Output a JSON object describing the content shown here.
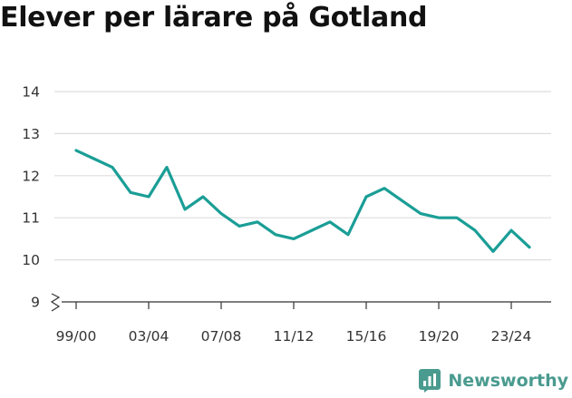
{
  "chart_data": {
    "type": "line",
    "title": "Elever per lärare på Gotland",
    "xlabel": "",
    "ylabel": "",
    "x": [
      "99/00",
      "00/01",
      "01/02",
      "02/03",
      "03/04",
      "04/05",
      "05/06",
      "06/07",
      "07/08",
      "08/09",
      "09/10",
      "10/11",
      "11/12",
      "12/13",
      "13/14",
      "14/15",
      "15/16",
      "16/17",
      "17/18",
      "18/19",
      "19/20",
      "20/21",
      "21/22",
      "22/23",
      "23/24",
      "24/25"
    ],
    "x_tick_labels": [
      "99/00",
      "03/04",
      "07/08",
      "11/12",
      "15/16",
      "19/20",
      "23/24"
    ],
    "series": [
      {
        "values": [
          12.6,
          12.4,
          12.2,
          11.6,
          11.5,
          12.2,
          11.2,
          11.5,
          11.1,
          10.8,
          10.9,
          10.6,
          10.5,
          10.7,
          10.9,
          10.6,
          11.5,
          11.7,
          11.4,
          11.1,
          11.0,
          11.0,
          10.7,
          10.2,
          10.7,
          10.3
        ]
      }
    ],
    "y_ticks": [
      9,
      10,
      11,
      12,
      13,
      14
    ],
    "ylim": [
      9,
      14
    ],
    "y_axis_break": true,
    "grid": true,
    "colors": {
      "line": "#1a9e96",
      "grid": "#dddddd",
      "axis": "#333333",
      "brand": "#4a9b8f"
    }
  },
  "brand": {
    "name": "Newsworthy",
    "icon": "newsworthy-logo-icon"
  }
}
